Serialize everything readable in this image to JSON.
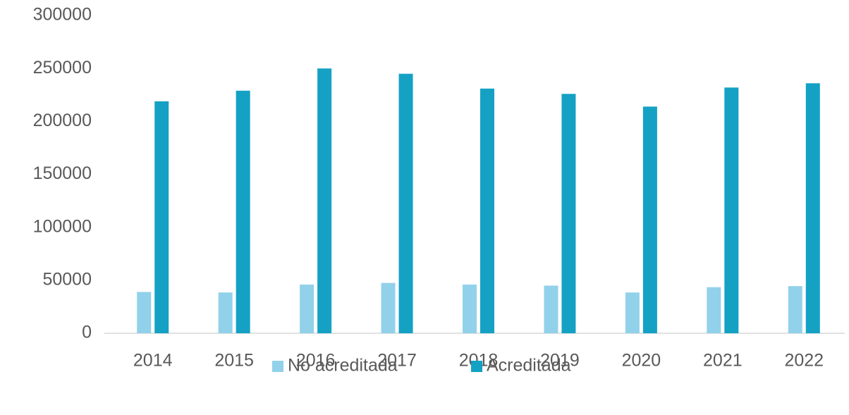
{
  "chart_data": {
    "type": "bar",
    "categories": [
      "2014",
      "2015",
      "2016",
      "2017",
      "2018",
      "2019",
      "2020",
      "2021",
      "2022"
    ],
    "series": [
      {
        "name": "No acreditada",
        "color": "#92d1ea",
        "values": [
          39000,
          38500,
          46000,
          47500,
          46000,
          45000,
          38500,
          43500,
          44500
        ]
      },
      {
        "name": "Acreditada",
        "color": "#14a1c4",
        "values": [
          219000,
          229000,
          250000,
          245000,
          231000,
          226000,
          214000,
          232000,
          236000
        ]
      }
    ],
    "ylim": [
      0,
      300000
    ],
    "yticks": [
      0,
      50000,
      100000,
      150000,
      200000,
      250000,
      300000
    ],
    "grid": false,
    "legend": "bottom"
  }
}
